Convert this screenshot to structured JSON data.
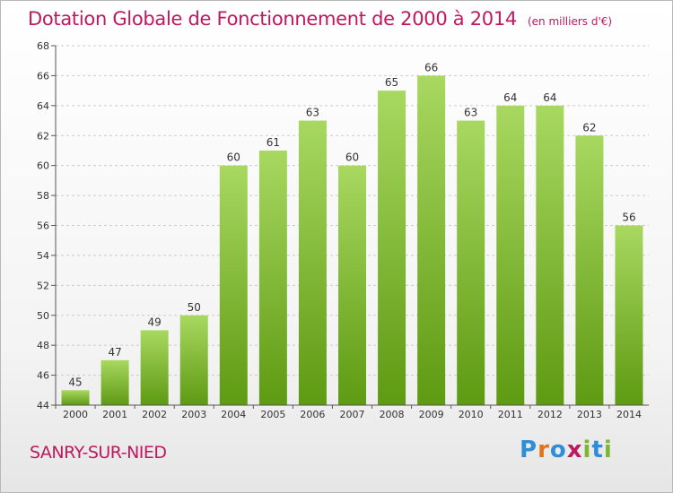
{
  "header": {
    "title": "Dotation Globale de Fonctionnement de 2000 à 2014",
    "unit": "(en milliers d'€)"
  },
  "footer": {
    "commune": "SANRY-SUR-NIED",
    "brand": "Proxiti",
    "brand_letters": [
      "P",
      "r",
      "o",
      "x",
      "i",
      "t",
      "i"
    ],
    "brand_colors": [
      "#2e8fd8",
      "#e1731b",
      "#2e8fd8",
      "#c0185f",
      "#7cb82f",
      "#2e8fd8",
      "#7cb82f"
    ]
  },
  "colors": {
    "title": "#c0185f",
    "bar_light": "#a8d860",
    "bar_dark": "#5e9a12",
    "axis": "#555555",
    "grid": "#cccccc"
  },
  "chart_data": {
    "type": "bar",
    "title": "Dotation Globale de Fonctionnement de 2000 à 2014",
    "subtitle": "(en milliers d'€)",
    "categories": [
      "2000",
      "2001",
      "2002",
      "2003",
      "2004",
      "2005",
      "2006",
      "2007",
      "2008",
      "2009",
      "2010",
      "2011",
      "2012",
      "2013",
      "2014"
    ],
    "values": [
      45,
      47,
      49,
      50,
      60,
      61,
      63,
      60,
      65,
      66,
      63,
      64,
      64,
      62,
      56
    ],
    "ylim": [
      44,
      68
    ],
    "yticks": [
      44,
      46,
      48,
      50,
      52,
      54,
      56,
      58,
      60,
      62,
      64,
      66,
      68
    ],
    "grid": "horizontal dashed",
    "data_labels": true,
    "legend": "none"
  }
}
